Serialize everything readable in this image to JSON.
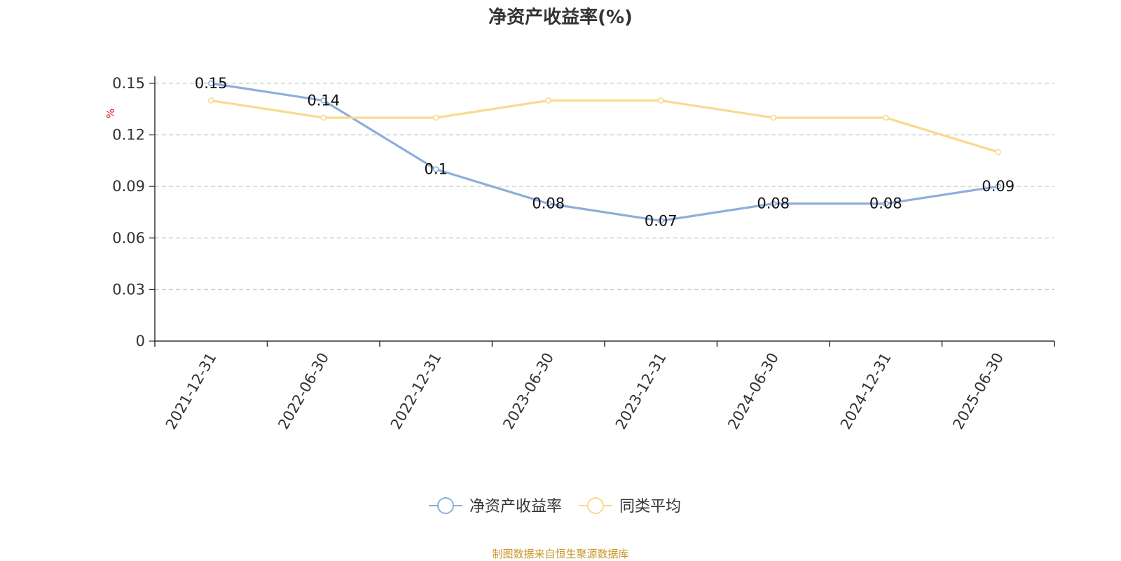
{
  "chart_data": {
    "type": "line",
    "title": "净资产收益率(%)",
    "ylabel": "%",
    "categories": [
      "2021-12-31",
      "2022-06-30",
      "2022-12-31",
      "2023-06-30",
      "2023-12-31",
      "2024-06-30",
      "2024-12-31",
      "2025-06-30"
    ],
    "series": [
      {
        "name": "净资产收益率",
        "values": [
          0.15,
          0.14,
          0.1,
          0.08,
          0.07,
          0.08,
          0.08,
          0.09
        ],
        "color": "#8eaedb",
        "show_labels": true
      },
      {
        "name": "同类平均",
        "values": [
          0.14,
          0.13,
          0.13,
          0.14,
          0.14,
          0.13,
          0.13,
          0.11
        ],
        "color": "#f9d98f",
        "show_labels": false
      }
    ],
    "data_labels": [
      "0.15",
      "0.14",
      "0.1",
      "0.08",
      "0.07",
      "0.08",
      "0.08",
      "0.09"
    ],
    "yticks": [
      "0",
      "0.03",
      "0.06",
      "0.09",
      "0.12",
      "0.15"
    ],
    "ylim": [
      0,
      0.15
    ],
    "grid": "horizontal dashed",
    "legend_position": "bottom"
  },
  "footer": {
    "source": "制图数据来自恒生聚源数据库"
  }
}
